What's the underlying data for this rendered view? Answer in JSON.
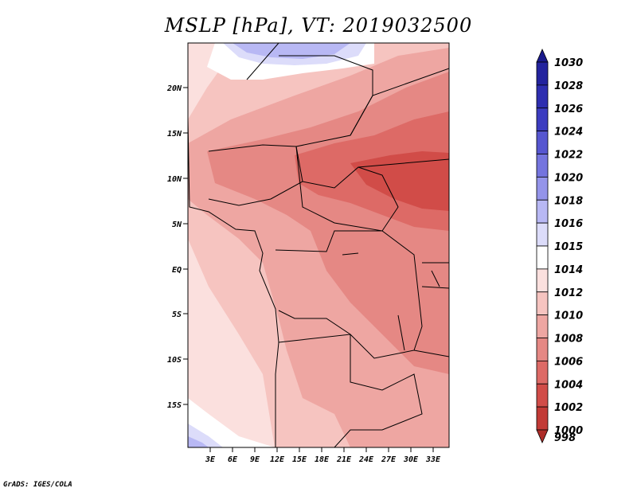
{
  "title": "MSLP [hPa], VT: 2019032500",
  "credit": "GrADS: IGES/COLA",
  "axes": {
    "lat_labels": [
      "20N",
      "15N",
      "10N",
      "5N",
      "EQ",
      "5S",
      "10S",
      "15S"
    ],
    "lon_labels": [
      "3E",
      "6E",
      "9E",
      "12E",
      "15E",
      "18E",
      "21E",
      "24E",
      "27E",
      "30E",
      "33E"
    ]
  },
  "colorbar": {
    "levels": [
      {
        "label": "1030",
        "color": "#1a1a8c"
      },
      {
        "label": "1028",
        "color": "#23239e"
      },
      {
        "label": "1026",
        "color": "#2e2eb0"
      },
      {
        "label": "1024",
        "color": "#3c3cc0"
      },
      {
        "label": "1022",
        "color": "#5656d0"
      },
      {
        "label": "1020",
        "color": "#7474de"
      },
      {
        "label": "1018",
        "color": "#9494ea"
      },
      {
        "label": "1016",
        "color": "#b8b8f4"
      },
      {
        "label": "1015",
        "color": "#dcdcfa"
      },
      {
        "label": "1014",
        "color": "#ffffff"
      },
      {
        "label": "1012",
        "color": "#fbe0de"
      },
      {
        "label": "1010",
        "color": "#f6c4c0"
      },
      {
        "label": "1008",
        "color": "#eea6a2"
      },
      {
        "label": "1006",
        "color": "#e58884"
      },
      {
        "label": "1004",
        "color": "#dd6a66"
      },
      {
        "label": "1002",
        "color": "#d14c48"
      },
      {
        "label": "1000",
        "color": "#c23a36"
      },
      {
        "label": "998",
        "color": "#ad2c28"
      }
    ]
  }
}
